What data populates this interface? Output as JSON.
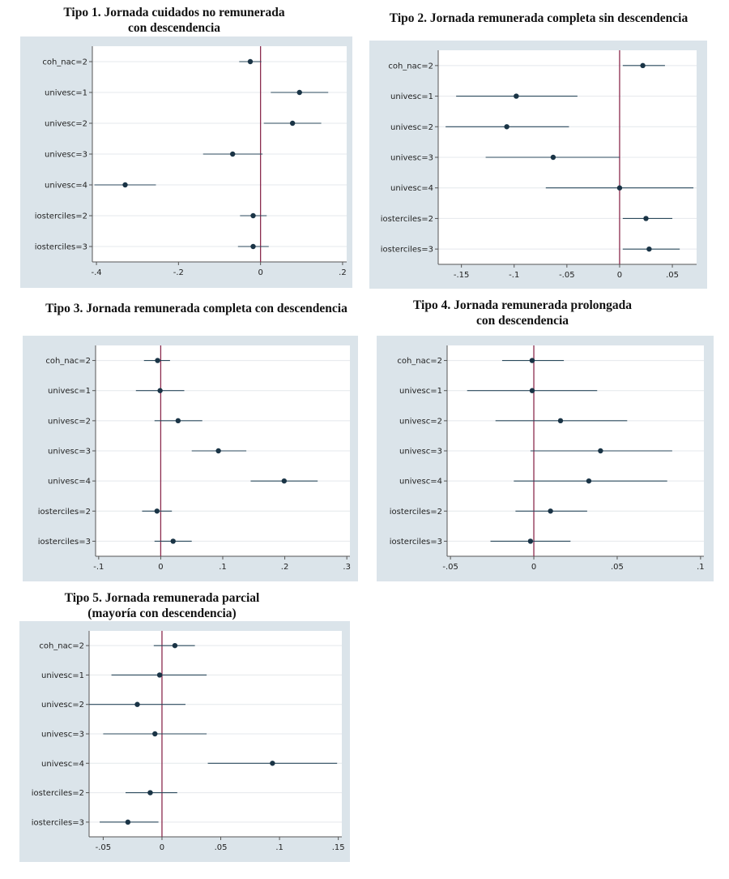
{
  "chart_data": [
    {
      "type": "coefficient_plot",
      "title": "Tipo 1. Jornada cuidados no remunerada\ncon descendencia",
      "categories": [
        "coh_nac=2",
        "univesc=1",
        "univesc=2",
        "univesc=3",
        "univesc=4",
        "iosterciles=2",
        "iosterciles=3"
      ],
      "estimates": [
        -0.025,
        0.095,
        0.078,
        -0.068,
        -0.33,
        -0.018,
        -0.018
      ],
      "ci_low": [
        -0.052,
        0.025,
        0.008,
        -0.14,
        -0.405,
        -0.05,
        -0.055
      ],
      "ci_high": [
        0.002,
        0.165,
        0.148,
        0.005,
        -0.255,
        0.015,
        0.02
      ],
      "xlim": [
        -0.41,
        0.21
      ],
      "xticks": [
        -0.4,
        -0.2,
        0,
        0.2
      ],
      "xtick_labels": [
        "-.4",
        "-.2",
        "0",
        ".2"
      ],
      "reference_line": 0
    },
    {
      "type": "coefficient_plot",
      "title": "Tipo 2. Jornada remunerada completa sin descendencia",
      "categories": [
        "coh_nac=2",
        "univesc=1",
        "univesc=2",
        "univesc=3",
        "univesc=4",
        "iosterciles=2",
        "iosterciles=3"
      ],
      "estimates": [
        0.022,
        -0.098,
        -0.107,
        -0.063,
        0.0,
        0.025,
        0.028
      ],
      "ci_low": [
        0.003,
        -0.155,
        -0.165,
        -0.127,
        -0.07,
        0.003,
        0.003
      ],
      "ci_high": [
        0.043,
        -0.04,
        -0.048,
        0.0,
        0.07,
        0.05,
        0.057
      ],
      "xlim": [
        -0.172,
        0.073
      ],
      "xticks": [
        -0.15,
        -0.1,
        -0.05,
        0,
        0.05
      ],
      "xtick_labels": [
        "-.15",
        "-.1",
        "-.05",
        "0",
        ".05"
      ],
      "reference_line": 0
    },
    {
      "type": "coefficient_plot",
      "title": "Tipo 3. Jornada remunerada completa con descendencia",
      "categories": [
        "coh_nac=2",
        "univesc=1",
        "univesc=2",
        "univesc=3",
        "univesc=4",
        "iosterciles=2",
        "iosterciles=3"
      ],
      "estimates": [
        -0.005,
        -0.001,
        0.028,
        0.093,
        0.199,
        -0.006,
        0.02
      ],
      "ci_low": [
        -0.027,
        -0.04,
        -0.01,
        0.05,
        0.145,
        -0.03,
        -0.01
      ],
      "ci_high": [
        0.015,
        0.038,
        0.067,
        0.138,
        0.253,
        0.018,
        0.05
      ],
      "xlim": [
        -0.105,
        0.305
      ],
      "xticks": [
        -0.1,
        0,
        0.1,
        0.2,
        0.3
      ],
      "xtick_labels": [
        "-.1",
        "0",
        ".1",
        ".2",
        ".3"
      ],
      "reference_line": 0
    },
    {
      "type": "coefficient_plot",
      "title": "Tipo 4. Jornada remunerada prolongada\ncon descendencia",
      "categories": [
        "coh_nac=2",
        "univesc=1",
        "univesc=2",
        "univesc=3",
        "univesc=4",
        "iosterciles=2",
        "iosterciles=3"
      ],
      "estimates": [
        -0.001,
        -0.001,
        0.016,
        0.04,
        0.033,
        0.01,
        -0.002
      ],
      "ci_low": [
        -0.019,
        -0.04,
        -0.023,
        -0.002,
        -0.012,
        -0.011,
        -0.026
      ],
      "ci_high": [
        0.018,
        0.038,
        0.056,
        0.083,
        0.08,
        0.032,
        0.022
      ],
      "xlim": [
        -0.052,
        0.102
      ],
      "xticks": [
        -0.05,
        0,
        0.05,
        0.1
      ],
      "xtick_labels": [
        "-.05",
        "0",
        ".05",
        ".1"
      ],
      "reference_line": 0
    },
    {
      "type": "coefficient_plot",
      "title": "Tipo 5. Jornada remunerada parcial\n(mayoría con descendencia)",
      "categories": [
        "coh_nac=2",
        "univesc=1",
        "univesc=2",
        "univesc=3",
        "univesc=4",
        "iosterciles=2",
        "iosterciles=3"
      ],
      "estimates": [
        0.011,
        -0.002,
        -0.021,
        -0.006,
        0.094,
        -0.01,
        -0.029
      ],
      "ci_low": [
        -0.007,
        -0.043,
        -0.062,
        -0.05,
        0.039,
        -0.031,
        -0.053
      ],
      "ci_high": [
        0.028,
        0.038,
        0.02,
        0.038,
        0.149,
        0.013,
        -0.003
      ],
      "xlim": [
        -0.062,
        0.153
      ],
      "xticks": [
        -0.05,
        0,
        0.05,
        0.1,
        0.15
      ],
      "xtick_labels": [
        "-.05",
        "0",
        ".05",
        ".1",
        ".15"
      ],
      "reference_line": 0
    }
  ]
}
